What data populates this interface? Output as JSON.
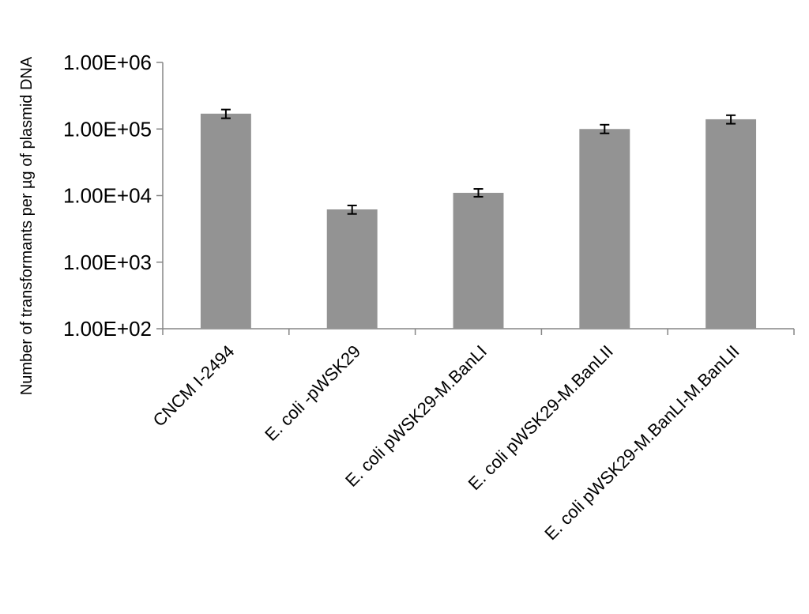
{
  "chart_data": {
    "type": "bar",
    "title": "",
    "xlabel": "",
    "ylabel": "Number of transformants per µg of plasmid DNA",
    "yscale": "log",
    "ylim": [
      100,
      1000000
    ],
    "yticks": [
      100,
      1000,
      10000,
      100000,
      1000000
    ],
    "ytick_labels": [
      "1.00E+02",
      "1.00E+03",
      "1.00E+04",
      "1.00E+05",
      "1.00E+06"
    ],
    "grid": false,
    "legend": "none",
    "bar_color": "#939393",
    "categories": [
      "CNCM I-2494",
      "E. coli -pWSK29",
      "E. coli pWSK29-M.BanLI",
      "E. coli pWSK29-M.BanLII",
      "E. coli pWSK29-M.BanLI-M.BanLII"
    ],
    "values": [
      170000,
      6200,
      11000,
      100000,
      140000
    ],
    "error_low": [
      145000,
      5300,
      9600,
      86000,
      120000
    ],
    "error_high": [
      196000,
      7100,
      12600,
      116000,
      161000
    ]
  }
}
